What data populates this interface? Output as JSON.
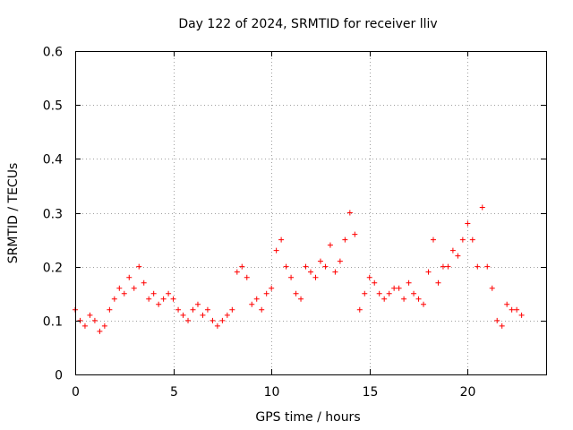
{
  "chart_data": {
    "type": "scatter",
    "title": "Day 122 of 2024, SRMTID for receiver lliv",
    "xlabel": "GPS time / hours",
    "ylabel": "SRMTID / TECUs",
    "xlim": [
      0,
      24
    ],
    "ylim": [
      0,
      0.6
    ],
    "x_ticks": [
      0,
      5,
      10,
      15,
      20
    ],
    "x_tick_labels": [
      "0",
      "5",
      "10",
      "15",
      "20"
    ],
    "y_ticks": [
      0,
      0.1,
      0.2,
      0.3,
      0.4,
      0.5,
      0.6
    ],
    "y_tick_labels": [
      "0",
      "0.1",
      "0.2",
      "0.3",
      "0.4",
      "0.5",
      "0.6"
    ],
    "grid": true,
    "marker": "plus",
    "color": "#ff0000",
    "series": [
      {
        "name": "SRMTID",
        "x": [
          0.0,
          0.25,
          0.5,
          0.75,
          1.0,
          1.25,
          1.5,
          1.75,
          2.0,
          2.25,
          2.5,
          2.75,
          3.0,
          3.25,
          3.5,
          3.75,
          4.0,
          4.25,
          4.5,
          4.75,
          5.0,
          5.25,
          5.5,
          5.75,
          6.0,
          6.25,
          6.5,
          6.75,
          7.0,
          7.25,
          7.5,
          7.75,
          8.0,
          8.25,
          8.5,
          8.75,
          9.0,
          9.25,
          9.5,
          9.75,
          10.0,
          10.25,
          10.5,
          10.75,
          11.0,
          11.25,
          11.5,
          11.75,
          12.0,
          12.25,
          12.5,
          12.75,
          13.0,
          13.25,
          13.5,
          13.75,
          14.0,
          14.25,
          14.5,
          14.75,
          15.0,
          15.25,
          15.5,
          15.75,
          16.0,
          16.25,
          16.5,
          16.75,
          17.0,
          17.25,
          17.5,
          17.75,
          18.0,
          18.25,
          18.5,
          18.75,
          19.0,
          19.25,
          19.5,
          19.75,
          20.0,
          20.25,
          20.5,
          20.75,
          21.0,
          21.25,
          21.5,
          21.75,
          22.0,
          22.25,
          22.5,
          22.75
        ],
        "y": [
          0.12,
          0.1,
          0.09,
          0.11,
          0.1,
          0.08,
          0.09,
          0.12,
          0.14,
          0.16,
          0.15,
          0.18,
          0.16,
          0.2,
          0.17,
          0.14,
          0.15,
          0.13,
          0.14,
          0.15,
          0.14,
          0.12,
          0.11,
          0.1,
          0.12,
          0.13,
          0.11,
          0.12,
          0.1,
          0.09,
          0.1,
          0.11,
          0.12,
          0.19,
          0.2,
          0.18,
          0.13,
          0.14,
          0.12,
          0.15,
          0.16,
          0.23,
          0.25,
          0.2,
          0.18,
          0.15,
          0.14,
          0.2,
          0.19,
          0.18,
          0.21,
          0.2,
          0.24,
          0.19,
          0.21,
          0.25,
          0.3,
          0.26,
          0.12,
          0.15,
          0.18,
          0.17,
          0.15,
          0.14,
          0.15,
          0.16,
          0.16,
          0.14,
          0.17,
          0.15,
          0.14,
          0.13,
          0.19,
          0.25,
          0.17,
          0.2,
          0.2,
          0.23,
          0.22,
          0.25,
          0.28,
          0.25,
          0.2,
          0.31,
          0.2,
          0.16,
          0.1,
          0.09,
          0.13,
          0.12,
          0.12,
          0.11
        ]
      }
    ]
  }
}
